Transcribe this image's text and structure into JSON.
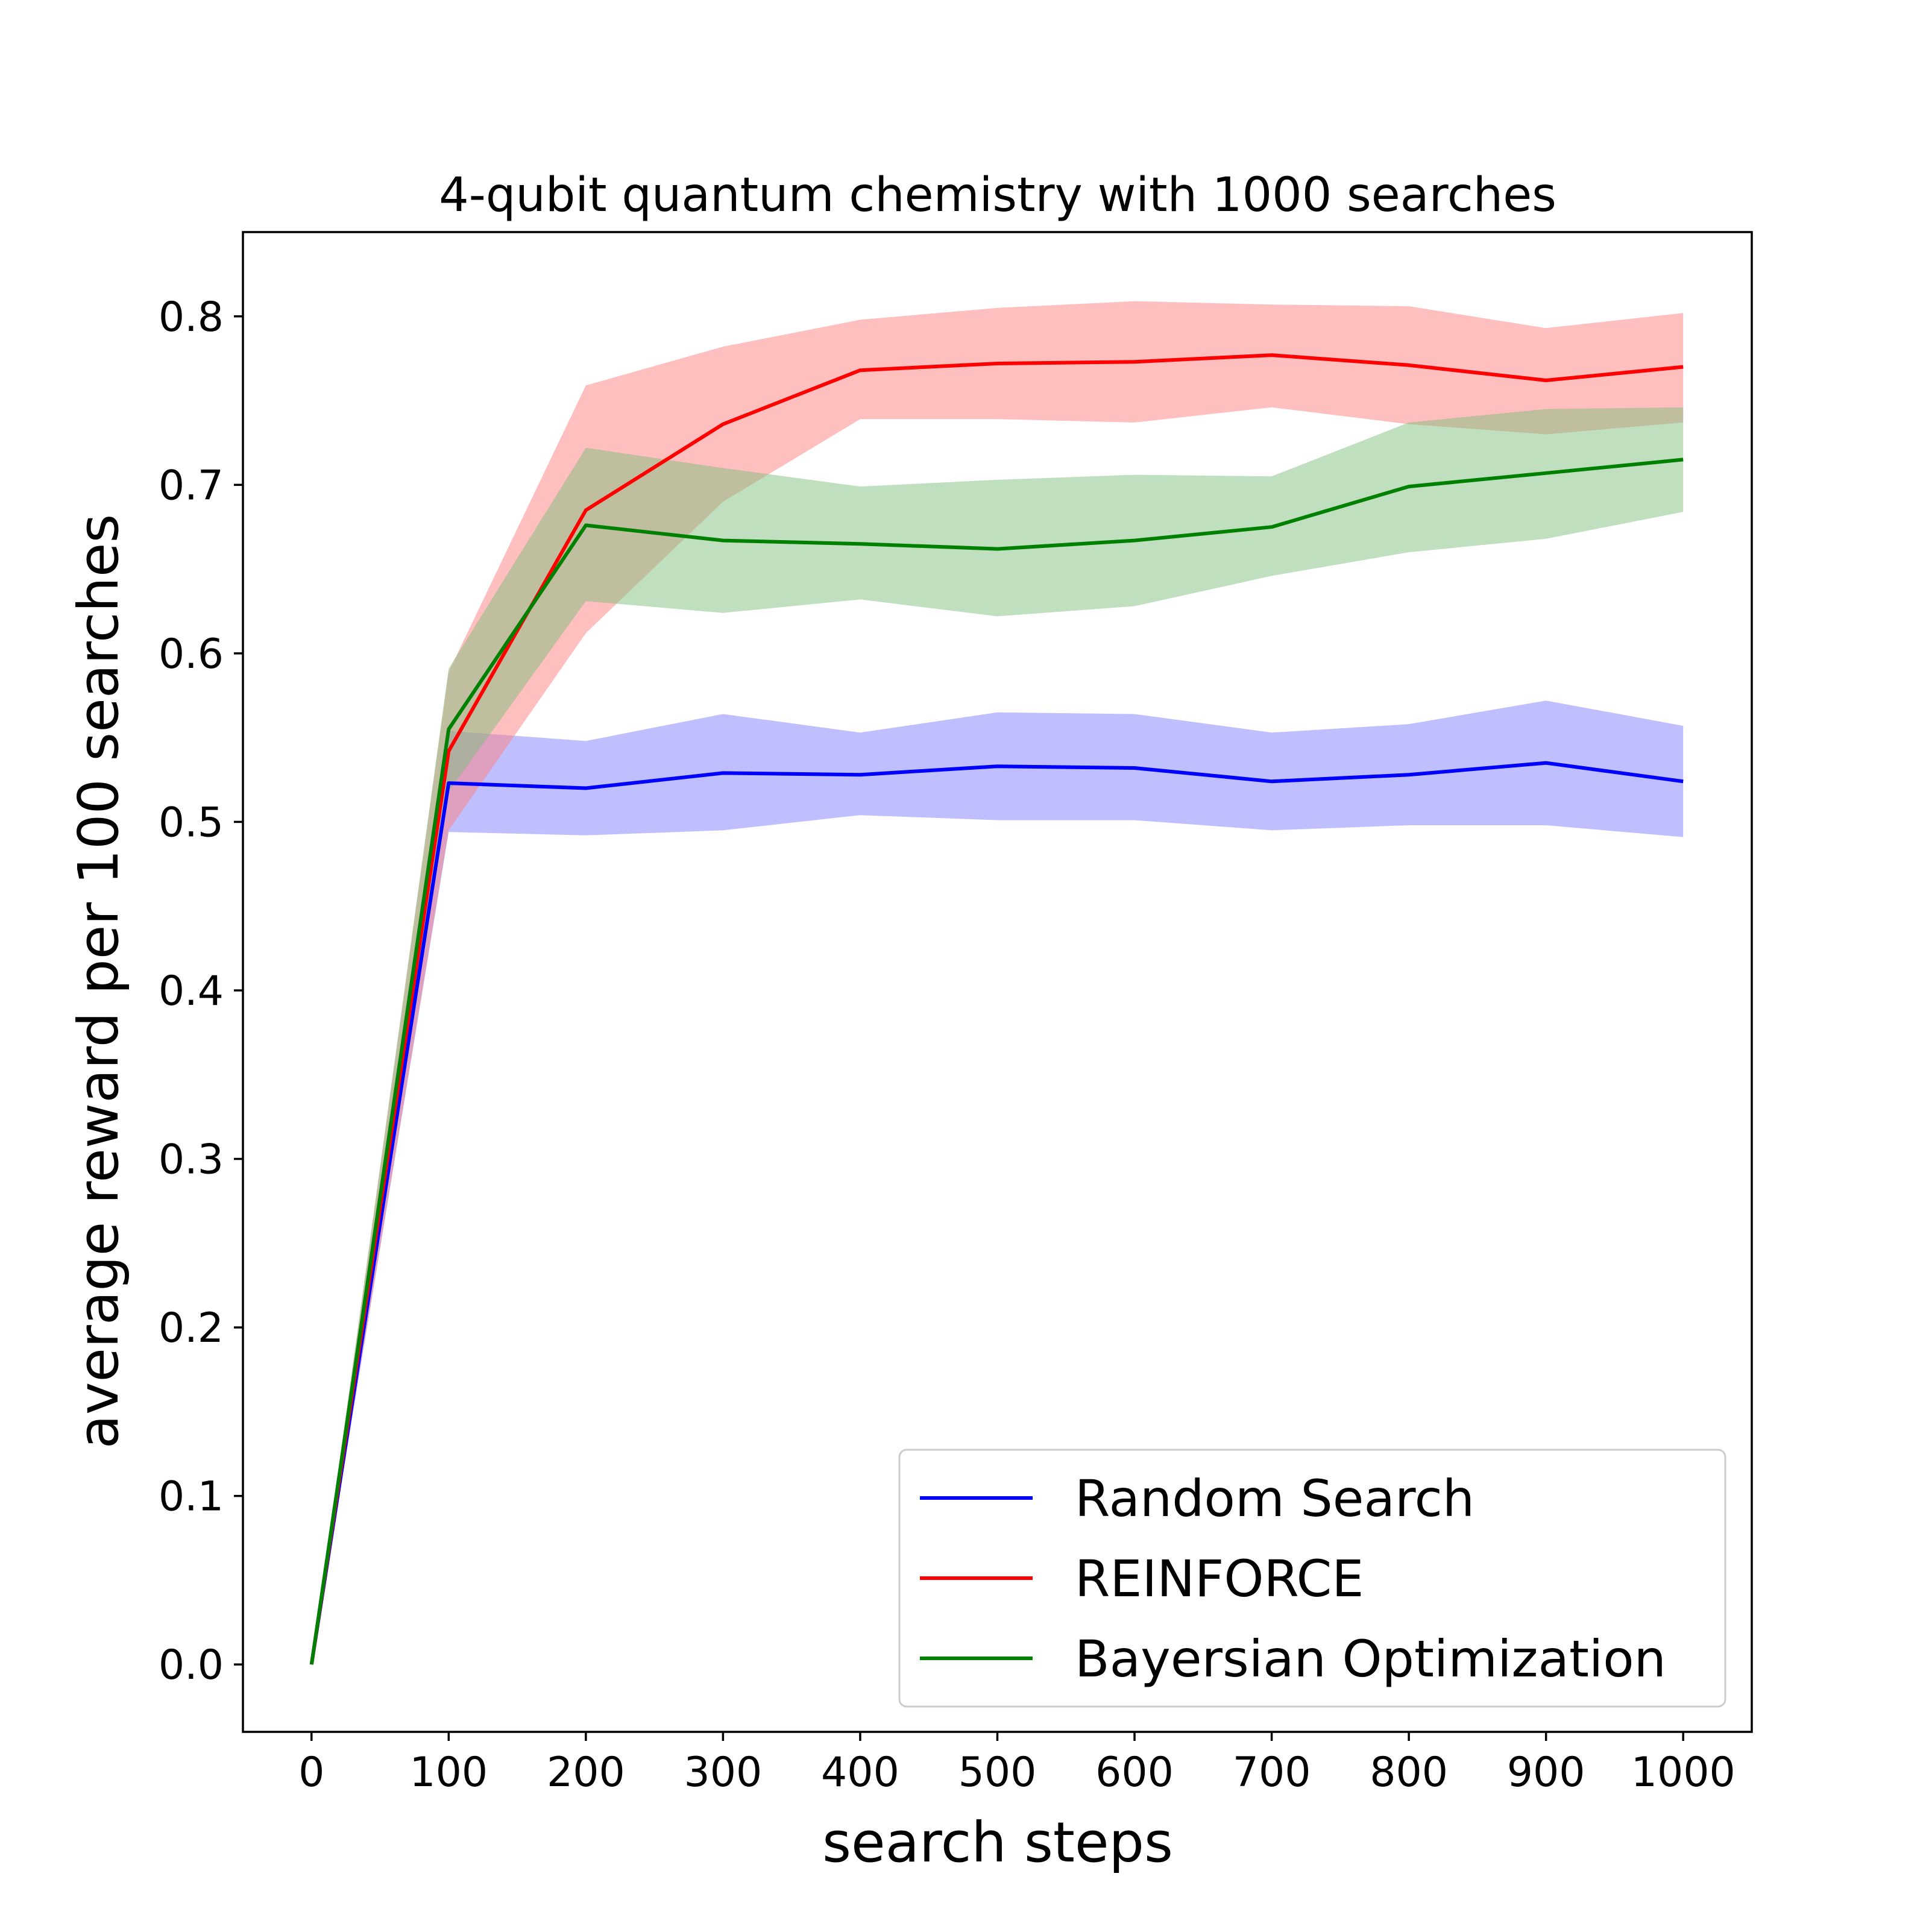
{
  "chart_data": {
    "type": "line",
    "title": "4-qubit quantum chemistry with 1000 searches",
    "xlabel": "search steps",
    "ylabel": "average reward per 100 searches",
    "xlim": [
      -50,
      1050
    ],
    "ylim": [
      -0.04,
      0.85
    ],
    "x_ticks": [
      0,
      100,
      200,
      300,
      400,
      500,
      600,
      700,
      800,
      900,
      1000
    ],
    "x_tick_labels": [
      "0",
      "100",
      "200",
      "300",
      "400",
      "500",
      "600",
      "700",
      "800",
      "900",
      "1000"
    ],
    "y_ticks": [
      0.0,
      0.1,
      0.2,
      0.3,
      0.4,
      0.5,
      0.6,
      0.7,
      0.8
    ],
    "y_tick_labels": [
      "0.0",
      "0.1",
      "0.2",
      "0.3",
      "0.4",
      "0.5",
      "0.6",
      "0.7",
      "0.8"
    ],
    "grid": false,
    "legend_position": "bottom-right",
    "x": [
      0,
      100,
      200,
      300,
      400,
      500,
      600,
      700,
      800,
      900,
      1000
    ],
    "series": [
      {
        "name": "Random Search",
        "color": "#0000ff",
        "band_color": "#8080ff",
        "values": [
          0.0,
          0.523,
          0.52,
          0.529,
          0.528,
          0.533,
          0.532,
          0.524,
          0.528,
          0.535,
          0.524
        ],
        "lower": [
          0.0,
          0.494,
          0.492,
          0.495,
          0.504,
          0.501,
          0.501,
          0.495,
          0.498,
          0.498,
          0.491
        ],
        "upper": [
          0.0,
          0.554,
          0.548,
          0.564,
          0.553,
          0.565,
          0.564,
          0.553,
          0.558,
          0.572,
          0.557
        ]
      },
      {
        "name": "REINFORCE",
        "color": "#ff0000",
        "band_color": "#ff8080",
        "values": [
          0.0,
          0.542,
          0.685,
          0.736,
          0.768,
          0.772,
          0.773,
          0.777,
          0.771,
          0.762,
          0.77
        ],
        "lower": [
          0.0,
          0.495,
          0.612,
          0.69,
          0.739,
          0.739,
          0.737,
          0.746,
          0.736,
          0.73,
          0.737
        ],
        "upper": [
          0.0,
          0.589,
          0.759,
          0.782,
          0.798,
          0.805,
          0.809,
          0.807,
          0.806,
          0.793,
          0.802
        ]
      },
      {
        "name": "Bayersian Optimization",
        "color": "#008000",
        "band_color": "#80c080",
        "values": [
          0.0,
          0.555,
          0.676,
          0.667,
          0.665,
          0.662,
          0.667,
          0.675,
          0.699,
          0.707,
          0.715
        ],
        "lower": [
          0.0,
          0.518,
          0.631,
          0.624,
          0.632,
          0.622,
          0.628,
          0.646,
          0.66,
          0.668,
          0.684
        ],
        "upper": [
          0.0,
          0.591,
          0.722,
          0.71,
          0.699,
          0.703,
          0.706,
          0.705,
          0.737,
          0.745,
          0.746
        ]
      }
    ]
  }
}
